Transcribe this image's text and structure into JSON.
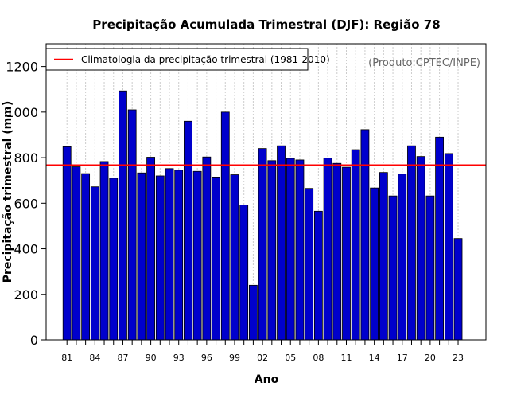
{
  "chart_data": {
    "type": "bar",
    "title": "Precipitação Acumulada Trimestral (DJF): Região 78",
    "xlabel": "Ano",
    "ylabel": "Precipitação trimestral (mm)",
    "ylim": [
      0,
      1300
    ],
    "yticks": [
      0,
      200,
      400,
      600,
      800,
      1000,
      1200
    ],
    "xtick_labels": [
      "81",
      "84",
      "87",
      "90",
      "93",
      "96",
      "99",
      "02",
      "05",
      "08",
      "11",
      "14",
      "17",
      "20",
      "23"
    ],
    "xtick_every": 3,
    "grid": "vertical-dotted",
    "categories": [
      "1981",
      "1982",
      "1983",
      "1984",
      "1985",
      "1986",
      "1987",
      "1988",
      "1989",
      "1990",
      "1991",
      "1992",
      "1993",
      "1994",
      "1995",
      "1996",
      "1997",
      "1998",
      "1999",
      "2000",
      "2001",
      "2002",
      "2003",
      "2004",
      "2005",
      "2006",
      "2007",
      "2008",
      "2009",
      "2010",
      "2011",
      "2012",
      "2013",
      "2014",
      "2015",
      "2016",
      "2017",
      "2018",
      "2019",
      "2020",
      "2021",
      "2022",
      "2023"
    ],
    "values": [
      848,
      760,
      730,
      672,
      783,
      710,
      1093,
      1010,
      733,
      802,
      720,
      752,
      745,
      960,
      740,
      803,
      715,
      1000,
      725,
      592,
      240,
      840,
      787,
      852,
      797,
      790,
      665,
      565,
      798,
      775,
      758,
      835,
      923,
      667,
      735,
      632,
      728,
      852,
      805,
      632,
      890,
      818,
      445
    ],
    "bar_color": "#0000cc",
    "reference_line": {
      "value": 768,
      "color": "#ff0000",
      "label": "Climatologia da precipitação trimestral (1981-2010)"
    },
    "legend_position": "top-left",
    "source_note": "(Produto:CPTEC/INPE)"
  }
}
